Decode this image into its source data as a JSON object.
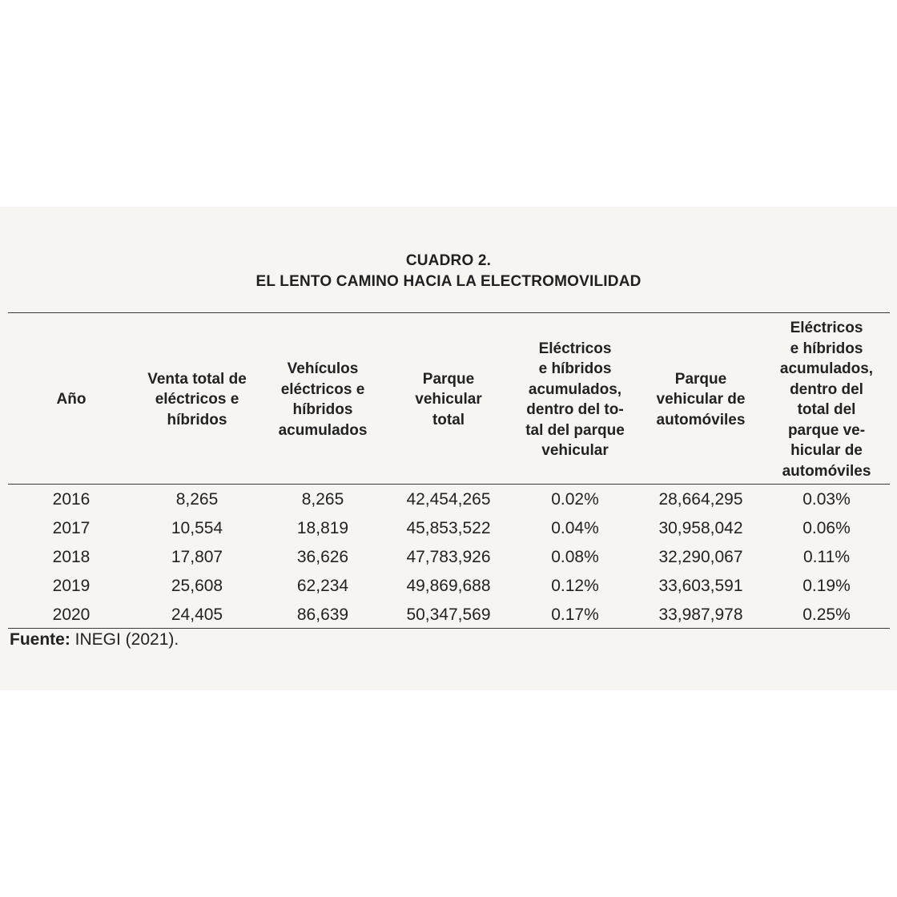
{
  "title": {
    "line1": "CUADRO 2.",
    "line2": "EL LENTO CAMINO HACIA LA ELECTROMOVILIDAD"
  },
  "table": {
    "headers": [
      "Año",
      "Venta total de\neléctricos e\nhíbridos",
      "Vehículos\neléctricos e\nhíbridos\nacumulados",
      "Parque\nvehicular\ntotal",
      "Eléctricos\ne híbridos\nacumulados,\ndentro del to-\ntal del parque\nvehicular",
      "Parque\nvehicular de\nautomóviles",
      "Eléctricos\ne híbridos\nacumulados,\ndentro del\ntotal del\nparque ve-\nhicular de\nautomóviles"
    ],
    "rows": [
      [
        "2016",
        "8,265",
        "8,265",
        "42,454,265",
        "0.02%",
        "28,664,295",
        "0.03%"
      ],
      [
        "2017",
        "10,554",
        "18,819",
        "45,853,522",
        "0.04%",
        "30,958,042",
        "0.06%"
      ],
      [
        "2018",
        "17,807",
        "36,626",
        "47,783,926",
        "0.08%",
        "32,290,067",
        "0.11%"
      ],
      [
        "2019",
        "25,608",
        "62,234",
        "49,869,688",
        "0.12%",
        "33,603,591",
        "0.19%"
      ],
      [
        "2020",
        "24,405",
        "86,639",
        "50,347,569",
        "0.17%",
        "33,987,978",
        "0.25%"
      ]
    ]
  },
  "source": {
    "label": "Fuente:",
    "text": " INEGI (2021)."
  }
}
